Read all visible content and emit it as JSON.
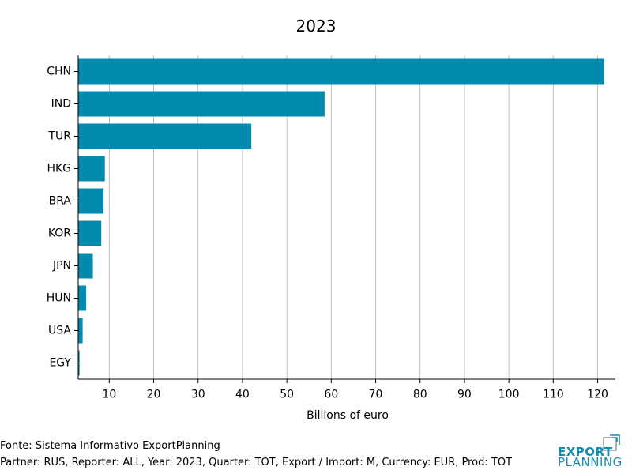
{
  "chart_data": {
    "type": "bar",
    "orientation": "horizontal",
    "title": "2023",
    "xlabel": "Billions of euro",
    "ylabel": "",
    "categories": [
      "CHN",
      "IND",
      "TUR",
      "HKG",
      "BRA",
      "KOR",
      "JPN",
      "HUN",
      "USA",
      "EGY"
    ],
    "values": [
      121.5,
      58.5,
      42.0,
      9.0,
      8.7,
      8.2,
      6.3,
      4.8,
      4.0,
      3.3
    ],
    "xlim": [
      3,
      124
    ],
    "xticks": [
      10,
      20,
      30,
      40,
      50,
      60,
      70,
      80,
      90,
      100,
      110,
      120
    ],
    "grid": "vertical",
    "bar_color": "#008aad"
  },
  "footer": {
    "source": "Fonte: Sistema Informativo ExportPlanning",
    "params": "Partner: RUS, Reporter: ALL, Year: 2023, Quarter: TOT, Export / Import: M, Currency: EUR, Prod: TOT"
  },
  "logo": {
    "line1": "EXPORT",
    "line2": "PLANNING",
    "color": "#1a8bb0"
  }
}
